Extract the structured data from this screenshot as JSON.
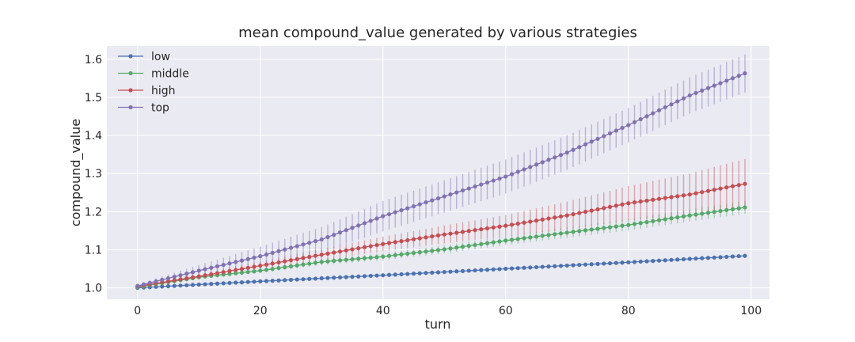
{
  "chart_data": {
    "type": "line",
    "title": "mean compound_value generated by various strategies",
    "xlabel": "turn",
    "ylabel": "compound_value",
    "xlim": [
      -5,
      103
    ],
    "ylim": [
      0.97,
      1.635
    ],
    "xticks": [
      0,
      20,
      40,
      60,
      80,
      100
    ],
    "yticks": [
      1.0,
      1.1,
      1.2,
      1.3,
      1.4,
      1.5,
      1.6
    ],
    "xtick_labels": [
      "0",
      "20",
      "40",
      "60",
      "80",
      "100"
    ],
    "ytick_labels": [
      "1.0",
      "1.1",
      "1.2",
      "1.3",
      "1.4",
      "1.5",
      "1.6"
    ],
    "grid": true,
    "legend_position": "top-left",
    "x_range": [
      0,
      99
    ],
    "series": [
      {
        "name": "low",
        "color": "#4c72b0",
        "anchors": [
          [
            0,
            1.0
          ],
          [
            20,
            1.017
          ],
          [
            40,
            1.033
          ],
          [
            60,
            1.05
          ],
          [
            80,
            1.067
          ],
          [
            99,
            1.084
          ]
        ],
        "error_anchors": [
          [
            0,
            0.002
          ],
          [
            99,
            0.003
          ]
        ]
      },
      {
        "name": "middle",
        "color": "#55a868",
        "anchors": [
          [
            0,
            1.002
          ],
          [
            10,
            1.028
          ],
          [
            20,
            1.045
          ],
          [
            30,
            1.068
          ],
          [
            40,
            1.082
          ],
          [
            50,
            1.101
          ],
          [
            60,
            1.124
          ],
          [
            70,
            1.145
          ],
          [
            80,
            1.165
          ],
          [
            90,
            1.19
          ],
          [
            99,
            1.211
          ]
        ],
        "error_anchors": [
          [
            0,
            0.003
          ],
          [
            30,
            0.008
          ],
          [
            60,
            0.012
          ],
          [
            99,
            0.017
          ]
        ]
      },
      {
        "name": "high",
        "color": "#c44e52",
        "anchors": [
          [
            0,
            1.004
          ],
          [
            10,
            1.03
          ],
          [
            20,
            1.058
          ],
          [
            30,
            1.087
          ],
          [
            40,
            1.115
          ],
          [
            50,
            1.14
          ],
          [
            60,
            1.163
          ],
          [
            70,
            1.19
          ],
          [
            80,
            1.222
          ],
          [
            90,
            1.245
          ],
          [
            99,
            1.273
          ]
        ],
        "error_anchors": [
          [
            0,
            0.004
          ],
          [
            30,
            0.015
          ],
          [
            60,
            0.028
          ],
          [
            80,
            0.045
          ],
          [
            99,
            0.065
          ]
        ]
      },
      {
        "name": "top",
        "color": "#8172b2",
        "anchors": [
          [
            0,
            1.005
          ],
          [
            10,
            1.045
          ],
          [
            20,
            1.083
          ],
          [
            30,
            1.127
          ],
          [
            40,
            1.188
          ],
          [
            50,
            1.24
          ],
          [
            60,
            1.292
          ],
          [
            70,
            1.355
          ],
          [
            80,
            1.427
          ],
          [
            90,
            1.505
          ],
          [
            99,
            1.563
          ]
        ],
        "error_anchors": [
          [
            0,
            0.005
          ],
          [
            20,
            0.025
          ],
          [
            40,
            0.04
          ],
          [
            60,
            0.045
          ],
          [
            80,
            0.045
          ],
          [
            99,
            0.05
          ]
        ]
      }
    ]
  }
}
